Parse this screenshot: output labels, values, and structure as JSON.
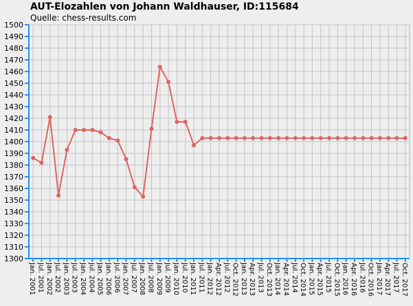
{
  "chart_data": {
    "type": "line",
    "title": "AUT-Elozahlen von Johann Waldhauser, ID:115684",
    "subtitle": "Quelle: chess-results.com",
    "categories": [
      "Jan. 2001",
      "Jul. 2001",
      "Jan. 2002",
      "Jul. 2002",
      "Jan. 2003",
      "Jul. 2003",
      "Jan. 2004",
      "Jul. 2004",
      "Jan. 2005",
      "Jan. 2006",
      "Jul. 2006",
      "Jan. 2007",
      "Jul. 2007",
      "Jan. 2008",
      "Jul. 2008",
      "Jan. 2009",
      "Jul. 2009",
      "Jan. 2010",
      "Jul. 2010",
      "Jan. 2011",
      "Jul. 2011",
      "Jan. 2012",
      "Apr. 2012",
      "Jul. 2012",
      "Oct. 2012",
      "Jan. 2013",
      "Apr. 2013",
      "Jul. 2013",
      "Oct. 2013",
      "Jan. 2014",
      "Apr. 2014",
      "Jul. 2014",
      "Oct. 2014",
      "Jan. 2015",
      "Apr. 2015",
      "Jul. 2015",
      "Oct. 2015",
      "Jan. 2016",
      "Apr. 2016",
      "Jul. 2016",
      "Oct. 2016",
      "Jan. 2017",
      "Apr. 2017",
      "Jul. 2017",
      "Oct. 2017"
    ],
    "series": [
      {
        "color": "#dd6464",
        "values": [
          1386,
          1382,
          1421,
          1354,
          1393,
          1410,
          1410,
          1410,
          1408,
          1403,
          1401,
          1385,
          1361,
          1353,
          1411,
          1464,
          1451,
          1417,
          1417,
          1397,
          1403,
          1403,
          1403,
          1403,
          1403,
          1403,
          1403,
          1403,
          1403,
          1403,
          1403,
          1403,
          1403,
          1403,
          1403,
          1403,
          1403,
          1403,
          1403,
          1403,
          1403,
          1403,
          1403,
          1403,
          1403
        ]
      }
    ],
    "ylim": [
      1300,
      1500
    ],
    "yticks": [
      1300,
      1310,
      1320,
      1330,
      1340,
      1350,
      1360,
      1370,
      1380,
      1390,
      1400,
      1410,
      1420,
      1430,
      1440,
      1450,
      1460,
      1470,
      1480,
      1490,
      1500
    ],
    "grid": true
  }
}
